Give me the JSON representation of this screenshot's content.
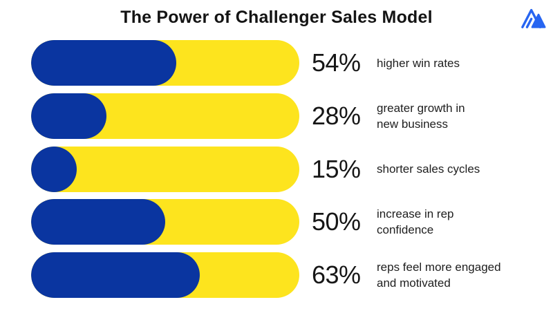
{
  "header": {
    "title": "The Power of Challenger Sales Model"
  },
  "logo": {
    "icon": "mountain-peaks-icon",
    "color": "#2765F1"
  },
  "chart_data": {
    "type": "bar",
    "orientation": "horizontal",
    "title": "The Power of Challenger Sales Model",
    "unit": "%",
    "value_range": [
      0,
      100
    ],
    "categories": [
      "higher win rates",
      "greater growth in\nnew business",
      "shorter sales cycles",
      "increase in rep\nconfidence",
      "reps feel more engaged\nand motivated"
    ],
    "values": [
      54,
      28,
      15,
      50,
      63
    ],
    "value_labels": [
      "54%",
      "28%",
      "15%",
      "50%",
      "63%"
    ],
    "colors": {
      "bar_fill": "#0A35A0",
      "bar_track": "#FDE41E",
      "text": "#161616"
    },
    "grid": false,
    "legend": false
  }
}
